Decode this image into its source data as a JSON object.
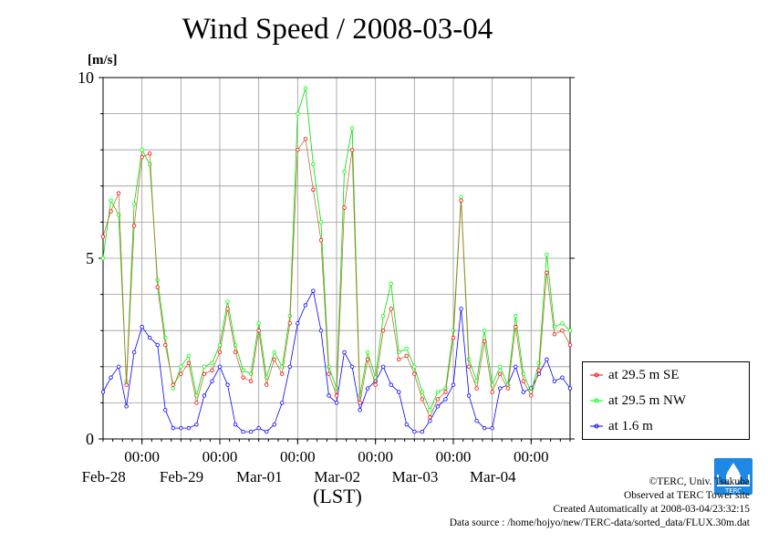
{
  "header": {
    "title": "Wind Speed / 2008-03-04"
  },
  "chart_data": {
    "type": "line",
    "title": "Wind Speed / 2008-03-04",
    "ylabel": "[m/s]",
    "xlabel": "(LST)",
    "ylim": [
      0,
      10
    ],
    "y_ticks": [
      "0",
      "5",
      "10"
    ],
    "x_ticks": [
      {
        "time": "00:00",
        "date": "Feb-28"
      },
      {
        "time": "00:00",
        "date": "Feb-29"
      },
      {
        "time": "00:00",
        "date": "Mar-01"
      },
      {
        "time": "00:00",
        "date": "Mar-02"
      },
      {
        "time": "00:00",
        "date": "Mar-03"
      },
      {
        "time": "00:00",
        "date": "Mar-04"
      }
    ],
    "grid": true,
    "legend_position": "bottom-right",
    "x_unit": "days since start of plot (6 days shown, 1-hour sampling)",
    "series": [
      {
        "name": "at 29.5 m SE",
        "color": "#ff0000",
        "line_color": "#b87333",
        "x": [
          0.0,
          0.1,
          0.2,
          0.3,
          0.4,
          0.5,
          0.6,
          0.7,
          0.8,
          0.9,
          1.0,
          1.1,
          1.2,
          1.3,
          1.4,
          1.5,
          1.6,
          1.7,
          1.8,
          1.9,
          2.0,
          2.1,
          2.2,
          2.3,
          2.4,
          2.5,
          2.6,
          2.7,
          2.8,
          2.9,
          3.0,
          3.1,
          3.2,
          3.3,
          3.4,
          3.5,
          3.6,
          3.7,
          3.8,
          3.9,
          4.0,
          4.1,
          4.2,
          4.3,
          4.4,
          4.5,
          4.6,
          4.7,
          4.8,
          4.9,
          5.0,
          5.1,
          5.2,
          5.3,
          5.4,
          5.5,
          5.6,
          5.7,
          5.8,
          5.9,
          6.0
        ],
        "y": [
          5.6,
          6.3,
          6.8,
          1.5,
          5.9,
          7.8,
          7.9,
          4.2,
          2.6,
          1.5,
          1.8,
          2.1,
          1.0,
          1.8,
          1.9,
          2.4,
          3.6,
          2.4,
          1.7,
          1.6,
          3.0,
          1.5,
          2.2,
          1.8,
          3.2,
          8.0,
          8.3,
          6.9,
          5.5,
          1.8,
          1.2,
          6.4,
          8.0,
          1.0,
          2.2,
          1.5,
          3.0,
          3.6,
          2.2,
          2.3,
          1.8,
          1.1,
          0.6,
          1.1,
          1.3,
          2.8,
          6.6,
          2.0,
          1.4,
          2.7,
          1.3,
          1.8,
          1.4,
          3.1,
          1.6,
          1.2,
          1.9,
          4.6,
          2.9,
          3.0,
          2.6
        ]
      },
      {
        "name": "at 29.5 m NW",
        "color": "#00ff00",
        "line_color": "#00dd00",
        "x": [
          0.0,
          0.1,
          0.2,
          0.3,
          0.4,
          0.5,
          0.6,
          0.7,
          0.8,
          0.9,
          1.0,
          1.1,
          1.2,
          1.3,
          1.4,
          1.5,
          1.6,
          1.7,
          1.8,
          1.9,
          2.0,
          2.1,
          2.2,
          2.3,
          2.4,
          2.5,
          2.6,
          2.7,
          2.8,
          2.9,
          3.0,
          3.1,
          3.2,
          3.3,
          3.4,
          3.5,
          3.6,
          3.7,
          3.8,
          3.9,
          4.0,
          4.1,
          4.2,
          4.3,
          4.4,
          4.5,
          4.6,
          4.7,
          4.8,
          4.9,
          5.0,
          5.1,
          5.2,
          5.3,
          5.4,
          5.5,
          5.6,
          5.7,
          5.8,
          5.9,
          6.0
        ],
        "y": [
          5.0,
          6.6,
          6.2,
          1.6,
          6.5,
          8.0,
          7.6,
          4.4,
          2.8,
          1.4,
          2.0,
          2.3,
          1.2,
          2.0,
          2.1,
          2.6,
          3.8,
          2.6,
          1.9,
          1.8,
          3.2,
          1.7,
          2.4,
          2.0,
          3.4,
          9.0,
          9.7,
          7.6,
          6.0,
          2.0,
          1.4,
          7.4,
          8.6,
          1.2,
          2.4,
          1.7,
          3.4,
          4.3,
          2.4,
          2.5,
          2.0,
          1.3,
          0.8,
          1.3,
          1.4,
          3.0,
          6.7,
          2.2,
          1.6,
          3.0,
          1.5,
          2.0,
          1.5,
          3.4,
          1.8,
          1.3,
          2.1,
          5.1,
          3.1,
          3.2,
          3.0
        ]
      },
      {
        "name": "at 1.6 m",
        "color": "#0000ff",
        "line_color": "#0000ff",
        "x": [
          0.0,
          0.1,
          0.2,
          0.3,
          0.4,
          0.5,
          0.6,
          0.7,
          0.8,
          0.9,
          1.0,
          1.1,
          1.2,
          1.3,
          1.4,
          1.5,
          1.6,
          1.7,
          1.8,
          1.9,
          2.0,
          2.1,
          2.2,
          2.3,
          2.4,
          2.5,
          2.6,
          2.7,
          2.8,
          2.9,
          3.0,
          3.1,
          3.2,
          3.3,
          3.4,
          3.5,
          3.6,
          3.7,
          3.8,
          3.9,
          4.0,
          4.1,
          4.2,
          4.3,
          4.4,
          4.5,
          4.6,
          4.7,
          4.8,
          4.9,
          5.0,
          5.1,
          5.2,
          5.3,
          5.4,
          5.5,
          5.6,
          5.7,
          5.8,
          5.9,
          6.0
        ],
        "y": [
          1.3,
          1.7,
          2.0,
          0.9,
          2.4,
          3.1,
          2.8,
          2.6,
          0.8,
          0.3,
          0.3,
          0.3,
          0.4,
          1.2,
          1.6,
          2.0,
          1.5,
          0.4,
          0.2,
          0.2,
          0.3,
          0.2,
          0.4,
          1.0,
          2.0,
          3.2,
          3.7,
          4.1,
          3.0,
          1.2,
          1.0,
          2.4,
          2.0,
          0.8,
          1.4,
          1.6,
          2.0,
          1.5,
          1.3,
          0.4,
          0.2,
          0.2,
          0.5,
          0.9,
          1.1,
          1.5,
          3.6,
          1.2,
          0.5,
          0.3,
          0.3,
          1.4,
          1.5,
          2.0,
          1.3,
          1.4,
          1.8,
          2.2,
          1.6,
          1.7,
          1.4
        ]
      }
    ]
  },
  "legend": {
    "items": [
      {
        "label": "at 29.5 m SE",
        "color": "#ff0000"
      },
      {
        "label": "at 29.5 m NW",
        "color": "#00ff00"
      },
      {
        "label": "at 1.6 m",
        "color": "#0000ff"
      }
    ]
  },
  "credits": {
    "copyright": "©TERC, Univ. Tsukuba",
    "observed": "Observed at TERC Tower site",
    "created": "Created Automatically at 2008-03-04/23:32:15",
    "source": "Data source : /home/hojyo/new/TERC-data/sorted_data/FLUX.30m.dat",
    "logo_text": "TERC"
  }
}
